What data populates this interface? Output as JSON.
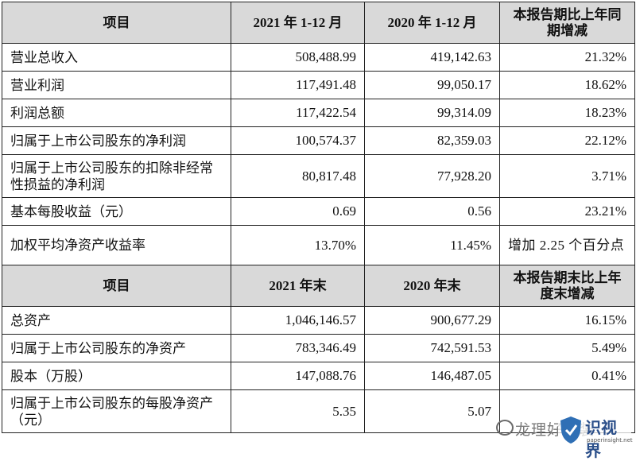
{
  "table1": {
    "headers": [
      "项目",
      "2021 年 1-12 月",
      "2020 年 1-12 月",
      "本报告期比上年同期增减"
    ],
    "rows": [
      [
        "营业总收入",
        "508,488.99",
        "419,142.63",
        "21.32%"
      ],
      [
        "营业利润",
        "117,491.48",
        "99,050.17",
        "18.62%"
      ],
      [
        "利润总额",
        "117,422.54",
        "99,314.09",
        "18.23%"
      ],
      [
        "归属于上市公司股东的净利润",
        "100,574.37",
        "82,359.03",
        "22.12%"
      ],
      [
        "归属于上市公司股东的扣除非经常性损益的净利润",
        "80,817.48",
        "77,928.20",
        "3.71%"
      ],
      [
        "基本每股收益（元）",
        "0.69",
        "0.56",
        "23.21%"
      ],
      [
        "加权平均净资产收益率",
        "13.70%",
        "11.45%",
        "增加 2.25 个百分点"
      ]
    ]
  },
  "table2": {
    "headers": [
      "项目",
      "2021 年末",
      "2020 年末",
      "本报告期末比上年度末增减"
    ],
    "rows": [
      [
        "总资产",
        "1,046,146.57",
        "900,677.29",
        "16.15%"
      ],
      [
        "归属于上市公司股东的净资产",
        "783,346.49",
        "742,591.53",
        "5.49%"
      ],
      [
        "股本（万股）",
        "147,088.76",
        "146,487.05",
        "0.41%"
      ],
      [
        "归属于上市公司股东的每股净资产（元）",
        "5.35",
        "5.07",
        ""
      ]
    ]
  },
  "watermark": {
    "channel_text": "龙理好包装",
    "brand_text": "识视界",
    "site_text": "paperinsight.net",
    "icon": "wechat-bubble-icon"
  }
}
